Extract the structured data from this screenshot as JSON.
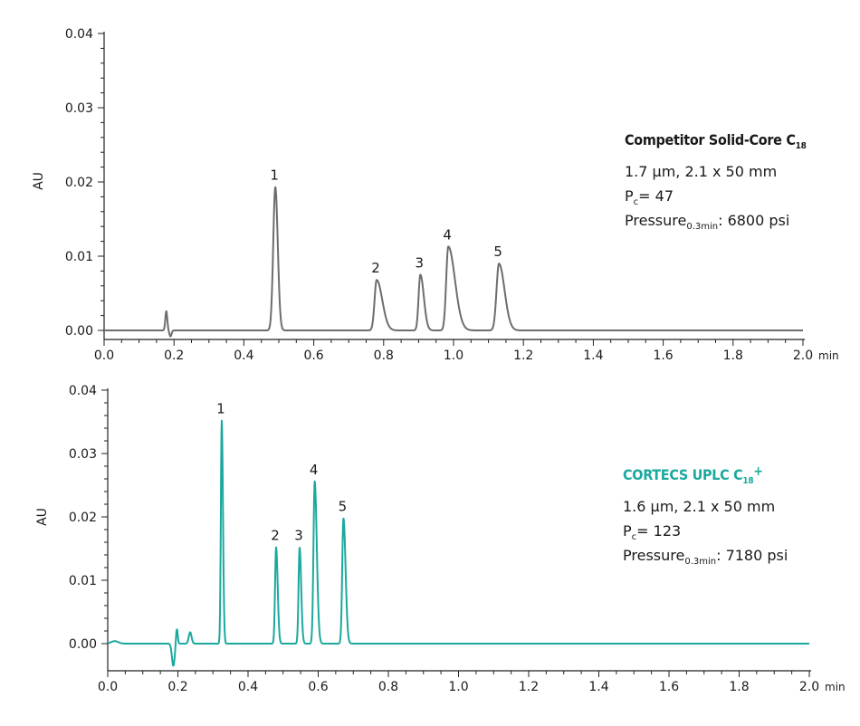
{
  "chart_data": [
    {
      "type": "line",
      "ylabel": "AU",
      "x_unit": "min",
      "xlim": [
        0.0,
        2.0
      ],
      "ylim": [
        -0.001,
        0.04
      ],
      "xticks": [
        "0.0",
        "0.2",
        "0.4",
        "0.6",
        "0.8",
        "1.0",
        "1.2",
        "1.4",
        "1.6",
        "1.8",
        "2.0"
      ],
      "yticks": [
        "0.04",
        "0.03",
        "0.02",
        "0.01",
        "0.00"
      ],
      "color": "#6d6d6d",
      "baseline": 0.0,
      "disturbances": [
        {
          "x": 0.178,
          "amp": 0.0026,
          "width": 0.0028
        },
        {
          "x": 0.19,
          "amp": -0.0008,
          "width": 0.003
        }
      ],
      "peaks": [
        {
          "label": "1",
          "x": 0.49,
          "height": 0.0193,
          "width_left": 0.006,
          "width_right": 0.007
        },
        {
          "label": "2",
          "x": 0.78,
          "height": 0.0068,
          "width_left": 0.006,
          "width_right": 0.016
        },
        {
          "label": "3",
          "x": 0.905,
          "height": 0.0075,
          "width_left": 0.005,
          "width_right": 0.01
        },
        {
          "label": "4",
          "x": 0.985,
          "height": 0.0113,
          "width_left": 0.006,
          "width_right": 0.019
        },
        {
          "label": "5",
          "x": 1.13,
          "height": 0.009,
          "width_left": 0.007,
          "width_right": 0.016
        }
      ],
      "info": {
        "title_main": "Competitor Solid-Core C",
        "title_sub": "18",
        "title_suffix": "",
        "title_color": "#1a1a1a",
        "particle": "1.7 µm, 2.1 x 50 mm",
        "pc_main": "P",
        "pc_sub": "c",
        "pc_value": "= 47",
        "pressure_main": "Pressure",
        "pressure_sub": "0.3min",
        "pressure_value": ": 6800 psi"
      }
    },
    {
      "type": "line",
      "ylabel": "AU",
      "x_unit": "min",
      "xlim": [
        0.0,
        2.0
      ],
      "ylim": [
        -0.004,
        0.04
      ],
      "xticks": [
        "0.0",
        "0.2",
        "0.4",
        "0.6",
        "0.8",
        "1.0",
        "1.2",
        "1.4",
        "1.6",
        "1.8",
        "2.0"
      ],
      "yticks": [
        "0.04",
        "0.03",
        "0.02",
        "0.01",
        "0.00"
      ],
      "color": "#1ba99e",
      "baseline": 0.0,
      "disturbances": [
        {
          "x": 0.02,
          "amp": 0.0004,
          "width": 0.01
        },
        {
          "x": 0.187,
          "amp": -0.0035,
          "width": 0.004
        },
        {
          "x": 0.197,
          "amp": 0.0024,
          "width": 0.0025
        },
        {
          "x": 0.235,
          "amp": 0.0018,
          "width": 0.004
        }
      ],
      "peaks": [
        {
          "label": "1",
          "x": 0.325,
          "height": 0.0352,
          "width_left": 0.0025,
          "width_right": 0.0035
        },
        {
          "label": "2",
          "x": 0.48,
          "height": 0.0152,
          "width_left": 0.003,
          "width_right": 0.0045
        },
        {
          "label": "3",
          "x": 0.547,
          "height": 0.0152,
          "width_left": 0.003,
          "width_right": 0.0045
        },
        {
          "label": "4",
          "x": 0.59,
          "height": 0.0256,
          "width_left": 0.0035,
          "width_right": 0.006
        },
        {
          "label": "5",
          "x": 0.672,
          "height": 0.0198,
          "width_left": 0.0035,
          "width_right": 0.006
        }
      ],
      "info": {
        "title_main": "CORTECS UPLC C",
        "title_sub": "18",
        "title_suffix": "+",
        "title_color": "#1ba99e",
        "particle": "1.6 µm, 2.1 x 50 mm",
        "pc_main": "P",
        "pc_sub": "c",
        "pc_value": "= 123",
        "pressure_main": "Pressure",
        "pressure_sub": "0.3min",
        "pressure_value": ": 7180 psi"
      }
    }
  ]
}
